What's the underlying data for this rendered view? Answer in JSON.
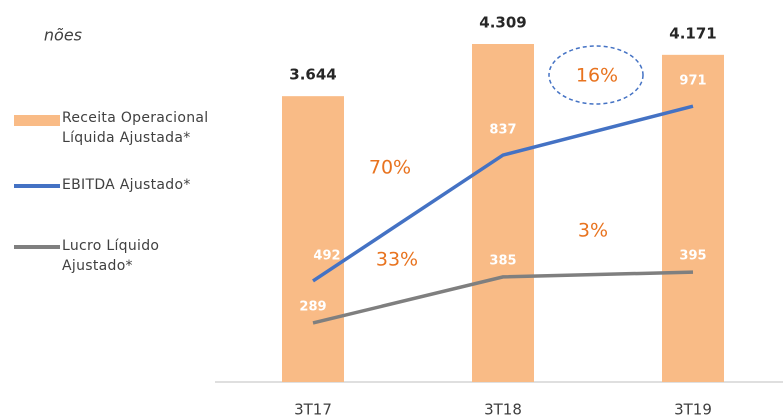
{
  "chart_data": {
    "type": "bar",
    "subtitle": "nões",
    "categories": [
      "3T17",
      "3T18",
      "3T19"
    ],
    "ylim": [
      0,
      4870
    ],
    "y2lim": [
      215,
      1262
    ],
    "y3lim": [
      166,
      962
    ],
    "series": [
      {
        "name": "Receita Operacional Líquida Ajustada*",
        "type": "bar",
        "color": "#f9bb86",
        "values": [
          3644,
          4309,
          4171
        ],
        "value_labels": [
          "3.644",
          "4.309",
          "4.171"
        ]
      },
      {
        "name": "EBITDA Ajustado*",
        "type": "line",
        "axis": "y2",
        "color": "#4472c4",
        "values": [
          492,
          837,
          971
        ]
      },
      {
        "name": "Lucro Líquido Ajustado*",
        "type": "line",
        "axis": "y3",
        "color": "#7f7f7f",
        "values": [
          289,
          385,
          395
        ]
      }
    ],
    "annotations": [
      "70%",
      "33%",
      "16%",
      "3%"
    ],
    "annotation_color": "#e8731f"
  }
}
